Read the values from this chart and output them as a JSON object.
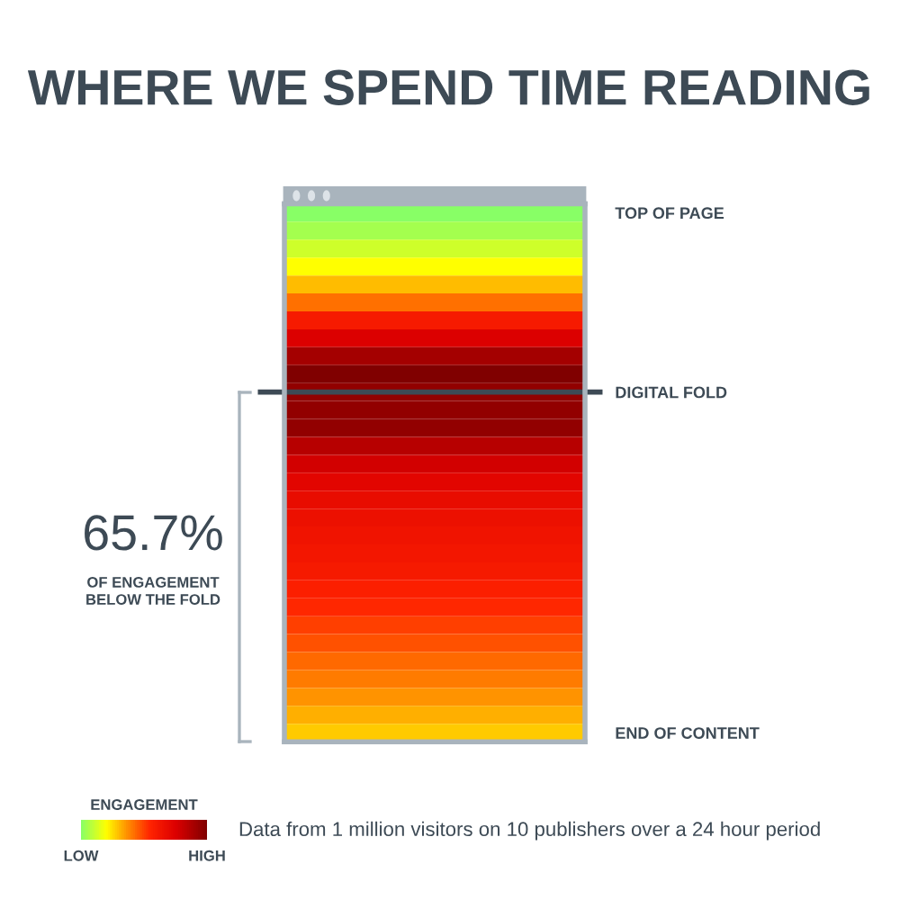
{
  "chart_data": {
    "type": "heatmap",
    "title": "WHERE WE SPEND TIME READING",
    "categories": [
      null
    ],
    "y_categories": [
      "TOP OF PAGE",
      null,
      null,
      null,
      null,
      null,
      null,
      null,
      null,
      null,
      "DIGITAL FOLD",
      null,
      null,
      null,
      null,
      null,
      null,
      null,
      null,
      null,
      null,
      null,
      null,
      null,
      null,
      null,
      null,
      null,
      null,
      "END OF CONTENT"
    ],
    "cells": [
      [
        0.0
      ],
      [
        0.05
      ],
      [
        0.12
      ],
      [
        0.2
      ],
      [
        0.3
      ],
      [
        0.42
      ],
      [
        0.6
      ],
      [
        0.75
      ],
      [
        0.9
      ],
      [
        1.0
      ],
      [
        0.95
      ],
      [
        0.95
      ],
      [
        0.95
      ],
      [
        0.85
      ],
      [
        0.78
      ],
      [
        0.72
      ],
      [
        0.68
      ],
      [
        0.66
      ],
      [
        0.64
      ],
      [
        0.62
      ],
      [
        0.6
      ],
      [
        0.57
      ],
      [
        0.54
      ],
      [
        0.5
      ],
      [
        0.47
      ],
      [
        0.43
      ],
      [
        0.4
      ],
      [
        0.36
      ],
      [
        0.32
      ],
      [
        0.28
      ]
    ],
    "clim": [
      0,
      1
    ],
    "cticks": [
      {
        "value": 0,
        "label": "LOW"
      },
      {
        "value": 1,
        "label": "HIGH"
      }
    ],
    "clabel": "ENGAGEMENT",
    "ref_lines": [
      {
        "axis": "y",
        "value": "DIGITAL FOLD",
        "color": "#3d4a55"
      }
    ],
    "annotations": [
      "65.7%",
      "OF ENGAGEMENT\nBELOW THE FOLD",
      "Data from 1 million visitors on 10 publishers over a 24 hour period"
    ]
  }
}
